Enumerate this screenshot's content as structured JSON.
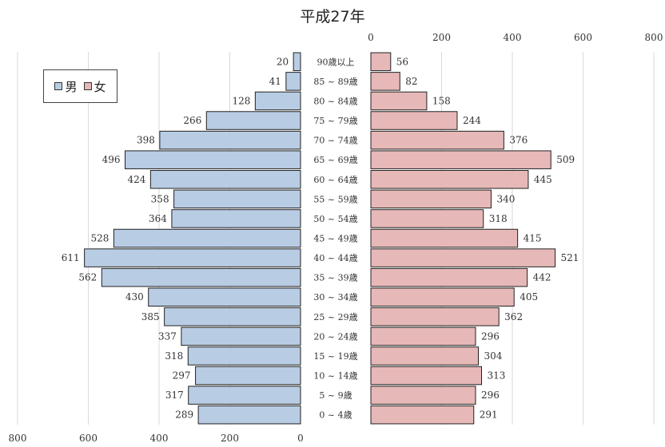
{
  "chart_data": {
    "type": "bar",
    "orientation": "horizontal-population-pyramid",
    "title": "平成27年",
    "categories": [
      "90歳以上",
      "85～89歳",
      "80～84歳",
      "75～79歳",
      "70～74歳",
      "65～69歳",
      "60～64歳",
      "55～59歳",
      "50～54歳",
      "45～49歳",
      "40～44歳",
      "35～39歳",
      "30～34歳",
      "25～29歳",
      "20～24歳",
      "15～19歳",
      "10～14歳",
      "5～9歳",
      "0～4歳"
    ],
    "category_labels": [
      "90歳以上",
      "85 ~ 89歳",
      "80 ~ 84歳",
      "75 ~ 79歳",
      "70 ~ 74歳",
      "65 ~ 69歳",
      "60 ~ 64歳",
      "55 ~ 59歳",
      "50 ~ 54歳",
      "45 ~ 49歳",
      "40 ~ 44歳",
      "35 ~ 39歳",
      "30 ~ 34歳",
      "25 ~ 29歳",
      "20 ~ 24歳",
      "15 ~ 19歳",
      "10 ~ 14歳",
      "5 ~ 9歳",
      "0 ~ 4歳"
    ],
    "series": [
      {
        "name": "男",
        "color": "#b8cce4",
        "values": [
          20,
          41,
          128,
          266,
          398,
          496,
          424,
          358,
          364,
          528,
          611,
          562,
          430,
          385,
          337,
          318,
          297,
          317,
          289
        ]
      },
      {
        "name": "女",
        "color": "#e6b8b7",
        "values": [
          56,
          82,
          158,
          244,
          376,
          509,
          445,
          340,
          318,
          415,
          521,
          442,
          405,
          362,
          296,
          304,
          313,
          296,
          291
        ]
      }
    ],
    "xlim": [
      0,
      800
    ],
    "x_ticks": [
      0,
      200,
      400,
      600,
      800
    ],
    "male_axis_tick_labels": [
      "800",
      "600",
      "400",
      "200",
      "0"
    ],
    "female_axis_tick_labels": [
      "0",
      "200",
      "400",
      "600",
      "800"
    ],
    "grid": true,
    "legend_position": "top-left"
  }
}
